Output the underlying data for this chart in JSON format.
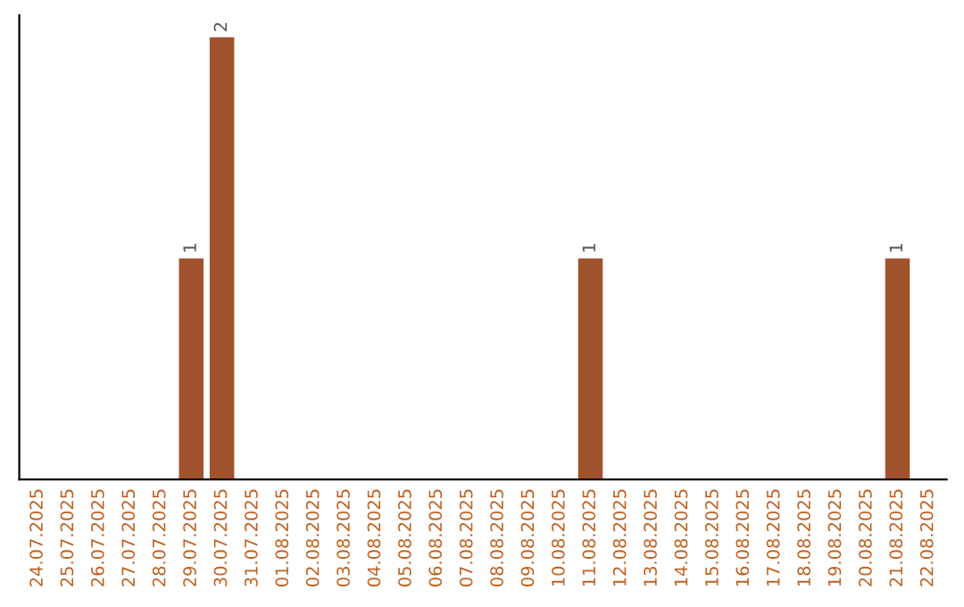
{
  "chart_data": {
    "type": "bar",
    "categories": [
      "24.07.2025",
      "25.07.2025",
      "26.07.2025",
      "27.07.2025",
      "28.07.2025",
      "29.07.2025",
      "30.07.2025",
      "31.07.2025",
      "01.08.2025",
      "02.08.2025",
      "03.08.2025",
      "04.08.2025",
      "05.08.2025",
      "06.08.2025",
      "07.08.2025",
      "08.08.2025",
      "09.08.2025",
      "10.08.2025",
      "11.08.2025",
      "12.08.2025",
      "13.08.2025",
      "14.08.2025",
      "15.08.2025",
      "16.08.2025",
      "17.08.2025",
      "18.08.2025",
      "19.08.2025",
      "20.08.2025",
      "21.08.2025",
      "22.08.2025"
    ],
    "values": [
      0,
      0,
      0,
      0,
      0,
      1,
      2,
      0,
      0,
      0,
      0,
      0,
      0,
      0,
      0,
      0,
      0,
      0,
      1,
      0,
      0,
      0,
      0,
      0,
      0,
      0,
      0,
      0,
      1,
      0
    ],
    "value_labels": [
      null,
      null,
      null,
      null,
      null,
      "1",
      "2",
      null,
      null,
      null,
      null,
      null,
      null,
      null,
      null,
      null,
      null,
      null,
      "1",
      null,
      null,
      null,
      null,
      null,
      null,
      null,
      null,
      null,
      "1",
      null
    ],
    "color": "#a0522d",
    "tick_labels": "x",
    "grid": false,
    "legend": false
  }
}
